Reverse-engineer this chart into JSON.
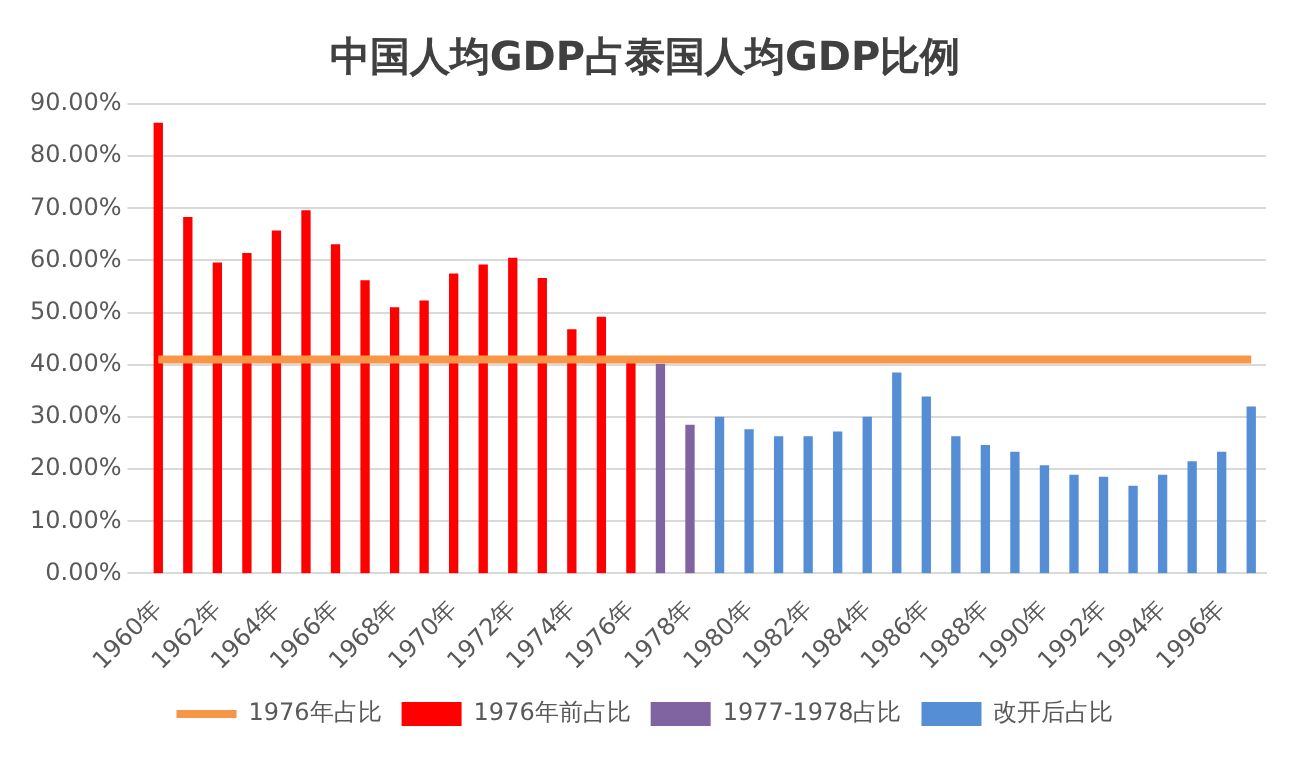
{
  "chart_data": {
    "type": "bar",
    "title": "中国人均GDP占泰国人均GDP比例",
    "categories": [
      "1960年",
      null,
      "1962年",
      null,
      "1964年",
      null,
      "1966年",
      null,
      "1968年",
      null,
      "1970年",
      null,
      "1972年",
      null,
      "1974年",
      null,
      "1976年",
      null,
      "1978年",
      null,
      "1980年",
      null,
      "1982年",
      null,
      "1984年",
      null,
      "1986年",
      null,
      "1988年",
      null,
      "1990年",
      null,
      "1992年",
      null,
      "1994年",
      null,
      "1996年",
      null
    ],
    "series": [
      {
        "name": "1976年前占比",
        "color": "#ff0000",
        "values": [
          86.3,
          68.2,
          59.5,
          61.3,
          65.6,
          69.5,
          63,
          56.1,
          50.9,
          52.2,
          57.4,
          59.1,
          60.4,
          56.5,
          46.7,
          49.1,
          40.8,
          null,
          null,
          null,
          null,
          null,
          null,
          null,
          null,
          null,
          null,
          null,
          null,
          null,
          null,
          null,
          null,
          null,
          null,
          null,
          null,
          null
        ]
      },
      {
        "name": "1977-1978占比",
        "color": "#8064a2",
        "values": [
          null,
          null,
          null,
          null,
          null,
          null,
          null,
          null,
          null,
          null,
          null,
          null,
          null,
          null,
          null,
          null,
          null,
          40.1,
          28.4,
          null,
          null,
          null,
          null,
          null,
          null,
          null,
          null,
          null,
          null,
          null,
          null,
          null,
          null,
          null,
          null,
          null,
          null,
          null
        ]
      },
      {
        "name": "改开后占比",
        "color": "#558ed5",
        "values": [
          null,
          null,
          null,
          null,
          null,
          null,
          null,
          null,
          null,
          null,
          null,
          null,
          null,
          null,
          null,
          null,
          null,
          null,
          null,
          29.9,
          27.5,
          26.2,
          26.2,
          27.1,
          29.9,
          38.4,
          33.8,
          26.2,
          24.5,
          23.2,
          20.6,
          18.8,
          18.4,
          16.7,
          18.8,
          21.4,
          23.2,
          31.9
        ]
      },
      {
        "name": "1976年占比",
        "type": "line",
        "color": "#f79646",
        "values": [
          41,
          41,
          41,
          41,
          41,
          41,
          41,
          41,
          41,
          41,
          41,
          41,
          41,
          41,
          41,
          41,
          41,
          41,
          41,
          41,
          41,
          41,
          41,
          41,
          41,
          41,
          41,
          41,
          41,
          41,
          41,
          41,
          41,
          41,
          41,
          41,
          41,
          41
        ]
      }
    ],
    "ylim": [
      0,
      90
    ],
    "yticks": [
      {
        "value": 0,
        "label": "0.00%"
      },
      {
        "value": 10,
        "label": "10.00%"
      },
      {
        "value": 20,
        "label": "20.00%"
      },
      {
        "value": 30,
        "label": "30.00%"
      },
      {
        "value": 40,
        "label": "40.00%"
      },
      {
        "value": 50,
        "label": "50.00%"
      },
      {
        "value": 60,
        "label": "60.00%"
      },
      {
        "value": 70,
        "label": "70.00%"
      },
      {
        "value": 80,
        "label": "80.00%"
      },
      {
        "value": 90,
        "label": "90.00%"
      }
    ],
    "grid": "y",
    "legend": "bottom"
  }
}
